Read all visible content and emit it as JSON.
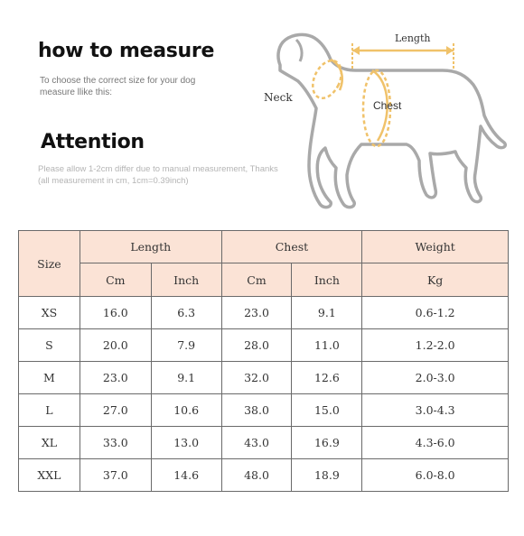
{
  "header": {
    "title": "how to measure",
    "subtitle": "To choose the correct size for your dog measure llike this:",
    "attention_title": "Attention",
    "attention_note": "Please allow 1-2cm differ due to manual measurement, Thanks (all measurement in cm, 1cm=0.39inch)"
  },
  "diagram": {
    "length_label": "Length",
    "neck_label": "Neck",
    "chest_label": "Chest",
    "accent_color": "#f0c26a",
    "outline_color": "#a9a9a9"
  },
  "table": {
    "size_header": "Size",
    "length_header": "Length",
    "chest_header": "Chest",
    "weight_header": "Weight",
    "length_cm": "Cm",
    "length_inch": "Inch",
    "chest_cm": "Cm",
    "chest_inch": "Inch",
    "weight_kg": "Kg",
    "header_bg": "#fbe3d6",
    "rows": [
      {
        "size": "XS",
        "length_cm": "16.0",
        "length_inch": "6.3",
        "chest_cm": "23.0",
        "chest_inch": "9.1",
        "weight": "0.6-1.2"
      },
      {
        "size": "S",
        "length_cm": "20.0",
        "length_inch": "7.9",
        "chest_cm": "28.0",
        "chest_inch": "11.0",
        "weight": "1.2-2.0"
      },
      {
        "size": "M",
        "length_cm": "23.0",
        "length_inch": "9.1",
        "chest_cm": "32.0",
        "chest_inch": "12.6",
        "weight": "2.0-3.0"
      },
      {
        "size": "L",
        "length_cm": "27.0",
        "length_inch": "10.6",
        "chest_cm": "38.0",
        "chest_inch": "15.0",
        "weight": "3.0-4.3"
      },
      {
        "size": "XL",
        "length_cm": "33.0",
        "length_inch": "13.0",
        "chest_cm": "43.0",
        "chest_inch": "16.9",
        "weight": "4.3-6.0"
      },
      {
        "size": "XXL",
        "length_cm": "37.0",
        "length_inch": "14.6",
        "chest_cm": "48.0",
        "chest_inch": "18.9",
        "weight": "6.0-8.0"
      }
    ]
  }
}
